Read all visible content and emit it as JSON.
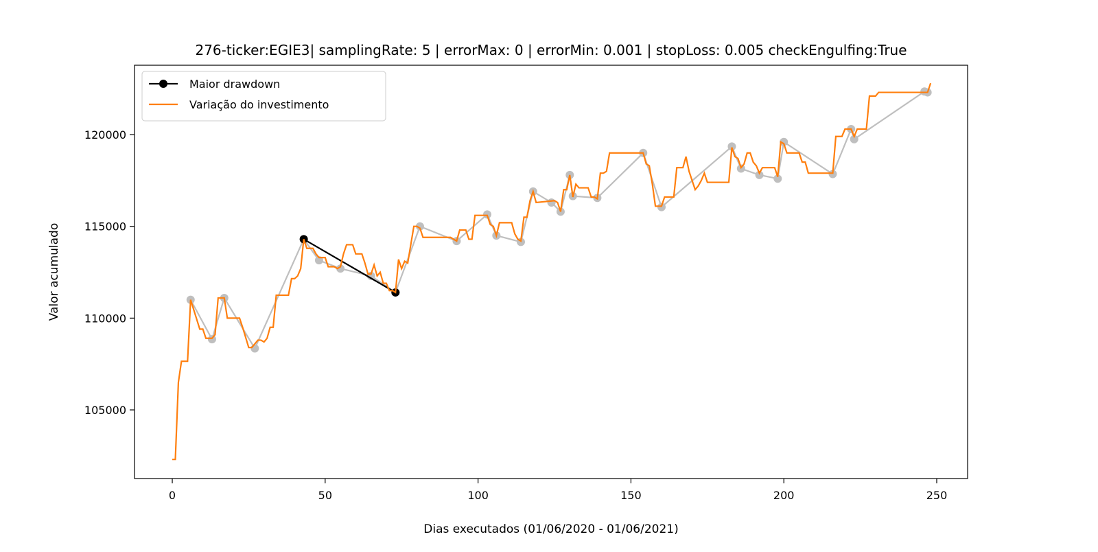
{
  "chart_data": {
    "type": "line",
    "title": "276-ticker:EGIE3| samplingRate: 5 | errorMax: 0 | errorMin: 0.001 | stopLoss: 0.005 checkEngulfing:True",
    "xlabel": "Dias executados (01/06/2020 - 01/06/2021)",
    "ylabel": "Valor acumulado",
    "xlim": [
      -12.35,
      260.1
    ],
    "ylim": [
      101260,
      123780
    ],
    "xticks": [
      0,
      50,
      100,
      150,
      200,
      250
    ],
    "yticks": [
      105000,
      110000,
      115000,
      120000
    ],
    "legend": "upper left",
    "series": [
      {
        "color": "#bfbfbf",
        "marker": true,
        "x": [
          6,
          13,
          17,
          27,
          43,
          48,
          55,
          65,
          73,
          81,
          93,
          103,
          106,
          114,
          118,
          124,
          127,
          130,
          131,
          139,
          154,
          160,
          183,
          186,
          192,
          198,
          200,
          216,
          222,
          223,
          246,
          247
        ],
        "values": [
          111000,
          108850,
          111100,
          108350,
          114300,
          113150,
          112700,
          112300,
          111400,
          115000,
          114200,
          115650,
          114500,
          114150,
          116900,
          116300,
          115800,
          117800,
          116650,
          116550,
          119000,
          116050,
          119350,
          118150,
          117800,
          117600,
          119600,
          117850,
          120300,
          119750,
          122350,
          122300
        ]
      },
      {
        "name": "Maior drawdown",
        "color": "#000000",
        "marker": true,
        "x": [
          43,
          73
        ],
        "values": [
          114300,
          111400
        ]
      },
      {
        "name": "Variação do investimento",
        "color": "#ff7f0e",
        "marker": false,
        "x": [
          0,
          1,
          2,
          3,
          5,
          6,
          9,
          10,
          11,
          13,
          14,
          15,
          17,
          18,
          22,
          23,
          25,
          26,
          27,
          28,
          29,
          30,
          31,
          32,
          33,
          34,
          38,
          39,
          40,
          41,
          42,
          43,
          44,
          46,
          47,
          48,
          50,
          51,
          53,
          54,
          55,
          56,
          57,
          59,
          60,
          62,
          63,
          64,
          65,
          66,
          67,
          68,
          69,
          70,
          71,
          72,
          73,
          74,
          75,
          76,
          77,
          78,
          79,
          80,
          81,
          82,
          91,
          93,
          94,
          96,
          97,
          98,
          99,
          103,
          104,
          105,
          106,
          107,
          111,
          112,
          113,
          114,
          115,
          116,
          117,
          118,
          119,
          125,
          126,
          127,
          128,
          129,
          130,
          131,
          132,
          133,
          136,
          137,
          138,
          139,
          140,
          141,
          142,
          143,
          154,
          155,
          156,
          157,
          158,
          160,
          161,
          164,
          165,
          167,
          168,
          169,
          170,
          171,
          172,
          173,
          174,
          175,
          182,
          183,
          184,
          185,
          186,
          187,
          188,
          189,
          190,
          191,
          192,
          193,
          197,
          198,
          199,
          200,
          201,
          205,
          206,
          207,
          208,
          216,
          217,
          219,
          220,
          222,
          223,
          224,
          227,
          228,
          230,
          231,
          247,
          248
        ],
        "values": [
          102300,
          102300,
          106500,
          107650,
          107650,
          111000,
          109400,
          109400,
          108900,
          108900,
          109100,
          111100,
          111100,
          110000,
          110000,
          109500,
          108400,
          108400,
          108600,
          108800,
          108800,
          108700,
          108900,
          109500,
          109500,
          111250,
          111250,
          112150,
          112150,
          112300,
          112700,
          114300,
          113800,
          113800,
          113500,
          113300,
          113300,
          112800,
          112800,
          112700,
          112800,
          113500,
          114000,
          114000,
          113500,
          113500,
          113000,
          112400,
          112400,
          112900,
          112300,
          112500,
          111900,
          111900,
          111500,
          111500,
          111400,
          113200,
          112700,
          113100,
          113000,
          114000,
          115000,
          115000,
          114900,
          114400,
          114400,
          114200,
          114800,
          114800,
          114300,
          114300,
          115600,
          115600,
          115100,
          115000,
          114500,
          115200,
          115200,
          114600,
          114300,
          114200,
          115500,
          115500,
          116400,
          116900,
          116300,
          116400,
          116300,
          115800,
          117000,
          117000,
          117800,
          116600,
          117300,
          117100,
          117100,
          116600,
          116600,
          116500,
          117900,
          117900,
          118000,
          119000,
          119000,
          118400,
          118300,
          117300,
          116100,
          116100,
          116600,
          116600,
          118200,
          118200,
          118800,
          118000,
          117500,
          117000,
          117200,
          117500,
          117900,
          117400,
          117400,
          119300,
          118800,
          118700,
          118200,
          118400,
          119000,
          119000,
          118500,
          118300,
          117900,
          118200,
          118200,
          117700,
          119600,
          119500,
          119000,
          119000,
          118500,
          118500,
          117900,
          117900,
          119900,
          119900,
          120300,
          120300,
          119900,
          120300,
          120300,
          122100,
          122100,
          122300,
          122300,
          122800
        ]
      }
    ]
  }
}
